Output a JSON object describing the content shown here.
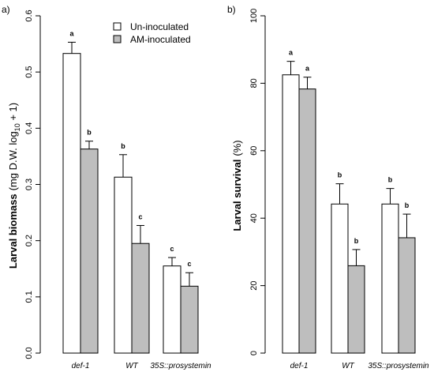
{
  "colors": {
    "uninoculated_fill": "#ffffff",
    "inoculated_fill": "#bebebe",
    "stroke": "#000000"
  },
  "chart_data": [
    {
      "type": "bar",
      "panel_label": "a)",
      "ylabel_main": "Larval biomass",
      "ylabel_unit_pre": "(mg D.W. log",
      "ylabel_unit_sub": "10",
      "ylabel_unit_post": " + 1)",
      "ylim": [
        0,
        0.6
      ],
      "yticks": [
        "0.0",
        "0.1",
        "0.2",
        "0.3",
        "0.4",
        "0.5",
        "0.6"
      ],
      "categories": [
        "def-1",
        "WT",
        "35S::prosystemin"
      ],
      "legend": {
        "placement": "top-right",
        "entries": [
          "Un-inoculated",
          "AM-inoculated"
        ]
      },
      "series": [
        {
          "name": "Un-inoculated",
          "values": [
            0.533,
            0.313,
            0.155
          ],
          "errors": [
            0.02,
            0.04,
            0.015
          ],
          "letters": [
            "a",
            "b",
            "c"
          ]
        },
        {
          "name": "AM-inoculated",
          "values": [
            0.363,
            0.195,
            0.119
          ],
          "errors": [
            0.014,
            0.032,
            0.024
          ],
          "letters": [
            "b",
            "c",
            "c"
          ]
        }
      ]
    },
    {
      "type": "bar",
      "panel_label": "b)",
      "ylabel_main": "Larval survival",
      "ylabel_unit_pre": "(%)",
      "ylabel_unit_sub": "",
      "ylabel_unit_post": "",
      "ylim": [
        0,
        100
      ],
      "yticks": [
        "0",
        "20",
        "40",
        "60",
        "80",
        "100"
      ],
      "categories": [
        "def-1",
        "WT",
        "35S::prosystemin"
      ],
      "series": [
        {
          "name": "Un-inoculated",
          "values": [
            82.5,
            44.2,
            44.2
          ],
          "errors": [
            4.0,
            6.0,
            4.6
          ],
          "letters": [
            "a",
            "b",
            "b"
          ]
        },
        {
          "name": "AM-inoculated",
          "values": [
            78.3,
            25.9,
            34.2
          ],
          "errors": [
            3.5,
            4.8,
            7.0
          ],
          "letters": [
            "a",
            "b",
            "b"
          ]
        }
      ]
    }
  ]
}
